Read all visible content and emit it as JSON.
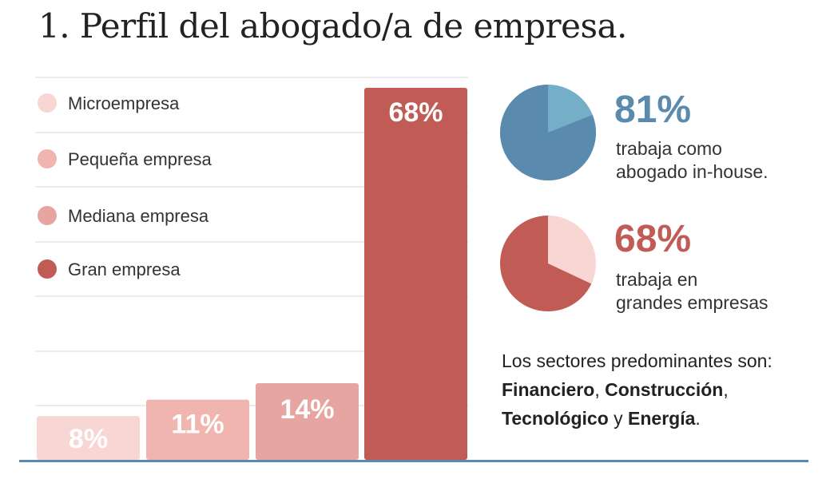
{
  "title": "1. Perfil del abogado/a de empresa.",
  "chart_data": {
    "type": "bar",
    "categories": [
      "Microempresa",
      "Pequeña empresa",
      "Mediana empresa",
      "Gran empresa"
    ],
    "values": [
      8,
      11,
      14,
      68
    ],
    "value_labels": [
      "8%",
      "11%",
      "14%",
      "68%"
    ],
    "colors": [
      "#f8d6d3",
      "#efb5ae",
      "#e6a5a0",
      "#c15b56"
    ],
    "ylim": [
      0,
      68
    ],
    "legend": "top-left",
    "grid": true
  },
  "stats": [
    {
      "pct": "81%",
      "line1": "trabaja como",
      "line2": "abogado in-house.",
      "value": 81,
      "color": "#5a8aad",
      "rest_color": "#74afc7"
    },
    {
      "pct": "68%",
      "line1": "trabaja en",
      "line2": "grandes empresas",
      "value": 68,
      "color": "#c15b56",
      "rest_color": "#f8d6d3"
    }
  ],
  "sectors": {
    "intro": "Los sectores predominantes son:",
    "s1": "Financiero",
    "sep1": ", ",
    "s2": "Construcción",
    "sep2": ",",
    "s3": "Tecnológico",
    "sep3": " y ",
    "s4": "Energía",
    "end": "."
  },
  "colors": {
    "axis": "#5a8aad",
    "grid": "#d9d9d9",
    "label_text": "#ffffff"
  }
}
